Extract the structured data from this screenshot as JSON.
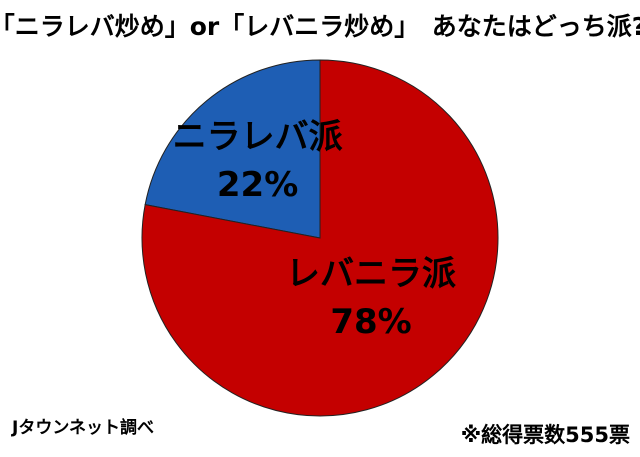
{
  "chart_data": {
    "type": "pie",
    "title": "「ニラレバ炒め」or「レバニラ炒め」　あなたはどっち派?",
    "categories": [
      "ニラレバ派",
      "レバニラ派"
    ],
    "values": [
      22,
      78
    ],
    "value_labels": [
      "22%",
      "78%"
    ],
    "colors": [
      "#1e5eb4",
      "#c40000"
    ],
    "source": "Jタウンネット調べ",
    "note": "※総得票数555票"
  }
}
